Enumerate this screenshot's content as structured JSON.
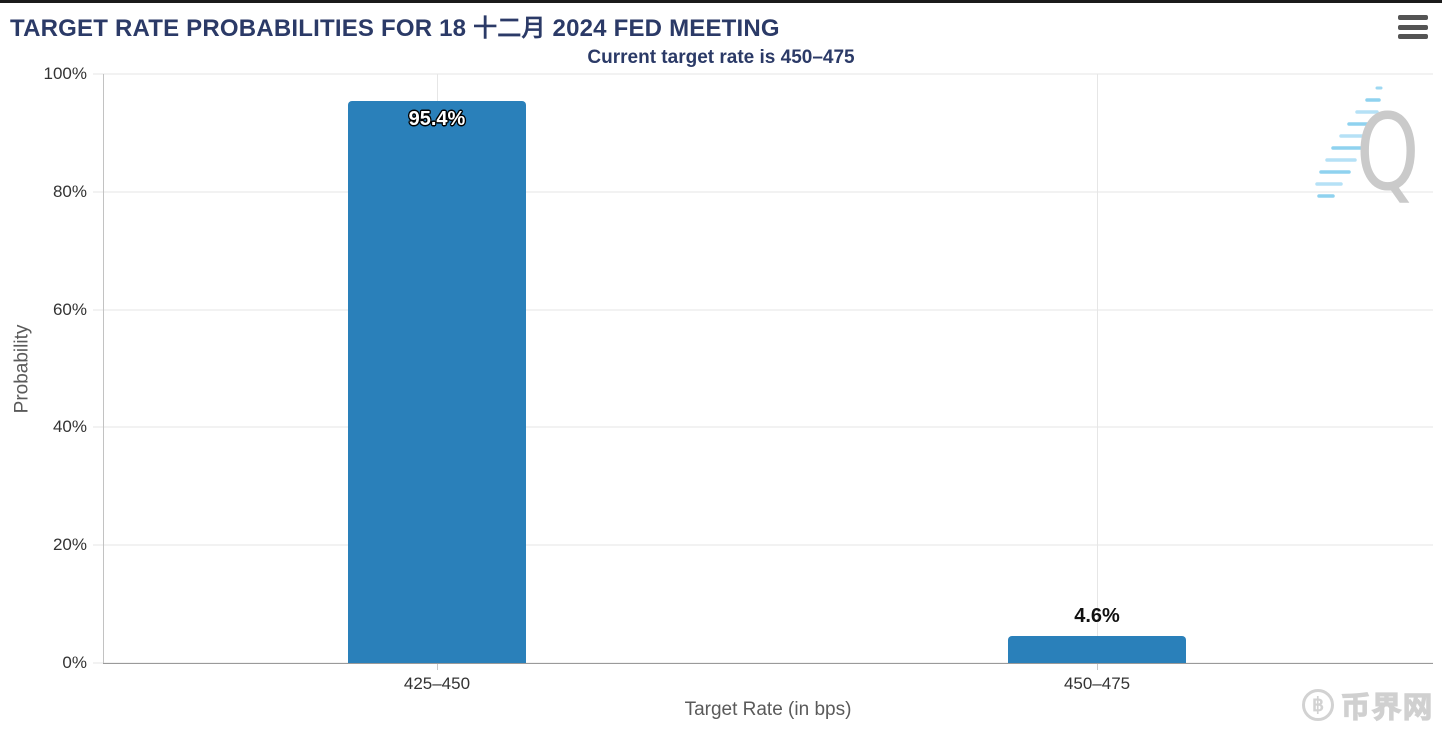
{
  "header": {
    "title": "TARGET RATE PROBABILITIES FOR 18 十二月 2024 FED MEETING"
  },
  "chart_data": {
    "type": "bar",
    "title": "TARGET RATE PROBABILITIES FOR 18 十二月 2024 FED MEETING",
    "subtitle": "Current target rate is 450–475",
    "categories": [
      "425–450",
      "450–475"
    ],
    "values": [
      95.4,
      4.6
    ],
    "value_labels": [
      "95.4%",
      "4.6%"
    ],
    "xlabel": "Target Rate (in bps)",
    "ylabel": "Probability",
    "ylim": [
      0,
      100
    ],
    "yticks": [
      "0%",
      "20%",
      "40%",
      "60%",
      "80%",
      "100%"
    ],
    "grid": true,
    "legend": "none",
    "bar_color": "#2a80ba"
  },
  "watermarks": {
    "chart_logo_letter": "Q",
    "site_logo_symbol": "฿",
    "site_logo_text": "币界网"
  },
  "colors": {
    "title_navy": "#2b3a67",
    "bar_blue": "#2a80ba",
    "gridline": "#e6e6e6",
    "x_axis_line": "#9a9a9a",
    "tick_text": "#333333",
    "axis_title_text": "#5a5a5a",
    "watermark_gray": "#cacaca"
  }
}
